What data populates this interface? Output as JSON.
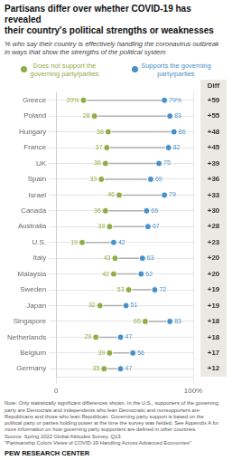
{
  "chart_data": {
    "type": "dumbbell",
    "orientation": "horizontal",
    "title": "Partisans differ over whether COVID-19 has revealed\ntheir country's political strengths or weaknesses",
    "subtitle": "% who say their country is effectively handling the coronavirus outbreak\nin ways that show the strengths of the political system",
    "categories": [
      "Greece",
      "Poland",
      "Hungary",
      "France",
      "UK",
      "Spain",
      "Israel",
      "Canada",
      "Australia",
      "U.S.",
      "Italy",
      "Malaysia",
      "Sweden",
      "Japan",
      "Singapore",
      "Netherlands",
      "Belgium",
      "Germany"
    ],
    "series": [
      {
        "name": "Does not support the\ngoverning party/parties",
        "color": "#8fac45",
        "values": [
          20,
          28,
          38,
          37,
          36,
          33,
          46,
          36,
          39,
          19,
          43,
          42,
          53,
          32,
          65,
          29,
          39,
          35
        ],
        "value_labels": [
          "20%",
          "28",
          "38",
          "37",
          "36",
          "33",
          "46",
          "36",
          "39",
          "19",
          "43",
          "42",
          "53",
          "32",
          "65",
          "29",
          "39",
          "35"
        ]
      },
      {
        "name": "Supports the governing\nparty/parties",
        "color": "#4a90c8",
        "values": [
          79,
          83,
          86,
          82,
          75,
          69,
          79,
          66,
          67,
          42,
          63,
          62,
          72,
          51,
          83,
          47,
          56,
          47
        ],
        "value_labels": [
          "79%",
          "83",
          "86",
          "82",
          "75",
          "69",
          "79",
          "66",
          "67",
          "42",
          "63",
          "62",
          "72",
          "51",
          "83",
          "47",
          "56",
          "47"
        ]
      }
    ],
    "diff": {
      "title": "Diff",
      "labels": [
        "+59",
        "+55",
        "+48",
        "+45",
        "+39",
        "+36",
        "+33",
        "+30",
        "+28",
        "+23",
        "+20",
        "+20",
        "+19",
        "+19",
        "+18",
        "+18",
        "+17",
        "+12"
      ]
    },
    "note": "Note: Only statistically significant differences shown. In the U.S., supporters of the governing\nparty are Democrats and independents who lean Democratic and nonsupporters are\nRepublicans and those who lean Republican. Governing party support is based on the\npolitical party or parties holding power at the time the survey was fielded. See Appendix A for\nmore information on how governing party supporters are defined in other countries.\nSource: Spring 2022 Global Attitudes Survey. Q13.\n\"Partisanship Colors Views of COVID-19 Handling Across Advanced Economies\"",
    "source": "PEW RESEARCH CENTER",
    "xlim": [
      0,
      100
    ],
    "xticks": [
      0,
      {
        "value": 100,
        "label": "100%"
      }
    ],
    "grid": true,
    "legend": "top",
    "data_labels": true,
    "marker": "circle"
  }
}
